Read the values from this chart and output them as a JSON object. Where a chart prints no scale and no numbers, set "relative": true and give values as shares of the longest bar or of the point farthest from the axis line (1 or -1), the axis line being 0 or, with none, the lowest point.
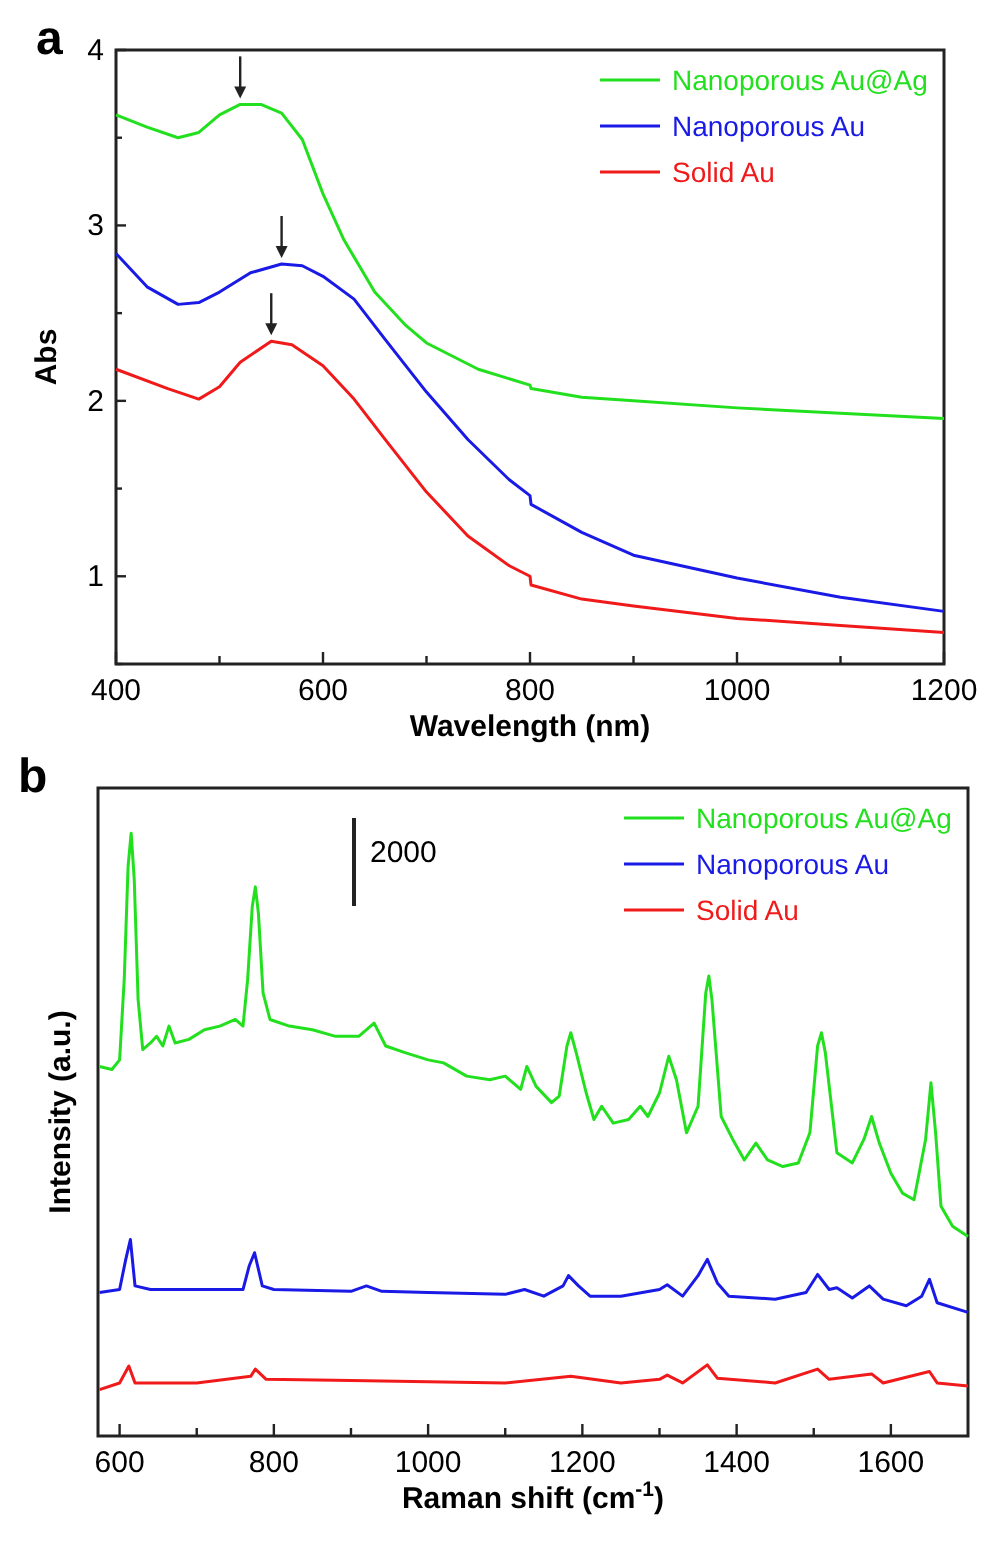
{
  "chart_data": [
    {
      "type": "line",
      "title": "a",
      "xlabel": "Wavelength (nm)",
      "ylabel": "Abs",
      "xlim": [
        400,
        1200
      ],
      "ylim": [
        0.5,
        4
      ],
      "xticks": [
        400,
        {
          "value": 500,
          "label": null
        },
        600,
        {
          "value": 700,
          "label": null
        },
        800,
        {
          "value": 900,
          "label": null
        },
        1000,
        {
          "value": 1100,
          "label": null
        },
        1200
      ],
      "yticks": [
        {
          "value": 0.5,
          "label": null
        },
        1,
        {
          "value": 1.5,
          "label": null
        },
        2,
        {
          "value": 2.5,
          "label": null
        },
        3,
        {
          "value": 3.5,
          "label": null
        },
        4
      ],
      "legend": "top right",
      "grid": false,
      "series": [
        {
          "name": "Nanoporous Au@Ag",
          "color": "#22e01e",
          "x": [
            400,
            430,
            460,
            480,
            500,
            520,
            540,
            560,
            580,
            600,
            620,
            650,
            680,
            700,
            750,
            800,
            801,
            850,
            900,
            1000,
            1100,
            1200
          ],
          "values": [
            3.63,
            3.56,
            3.5,
            3.53,
            3.63,
            3.69,
            3.69,
            3.64,
            3.49,
            3.18,
            2.92,
            2.62,
            2.43,
            2.33,
            2.18,
            2.09,
            2.07,
            2.02,
            2.0,
            1.96,
            1.93,
            1.9
          ]
        },
        {
          "name": "Nanoporous Au",
          "color": "#1a1ae6",
          "x": [
            400,
            430,
            460,
            480,
            500,
            530,
            560,
            580,
            600,
            630,
            660,
            700,
            740,
            780,
            800,
            801,
            850,
            900,
            1000,
            1100,
            1200
          ],
          "values": [
            2.84,
            2.65,
            2.55,
            2.56,
            2.62,
            2.73,
            2.78,
            2.77,
            2.71,
            2.58,
            2.35,
            2.05,
            1.78,
            1.55,
            1.46,
            1.41,
            1.25,
            1.12,
            0.99,
            0.88,
            0.8
          ]
        },
        {
          "name": "Solid Au",
          "color": "#f01a1a",
          "x": [
            400,
            450,
            480,
            500,
            520,
            550,
            570,
            600,
            630,
            660,
            700,
            740,
            780,
            800,
            801,
            850,
            900,
            1000,
            1100,
            1200
          ],
          "values": [
            2.18,
            2.07,
            2.01,
            2.08,
            2.22,
            2.34,
            2.32,
            2.2,
            2.01,
            1.78,
            1.48,
            1.23,
            1.06,
            1.0,
            0.95,
            0.87,
            0.83,
            0.76,
            0.72,
            0.68
          ]
        }
      ]
    },
    {
      "type": "line",
      "title": "b",
      "xlabel": "Raman shift (cm$^{-1}$)",
      "ylabel": "Intensity (a.u.)",
      "relative": true,
      "xlim": [
        572,
        1700
      ],
      "xticks": [
        600,
        {
          "value": 700,
          "label": null
        },
        800,
        {
          "value": 900,
          "label": null
        },
        1000,
        {
          "value": 1100,
          "label": null
        },
        1200,
        {
          "value": 1300,
          "label": null
        },
        1400,
        {
          "value": 1500,
          "label": null
        },
        1600
      ],
      "annotations": [
        "2000"
      ],
      "legend": "top right",
      "grid": false,
      "series": [
        {
          "name": "Nanoporous Au@Ag",
          "color": "#22e01e",
          "x": [
            574,
            590,
            600,
            606,
            611,
            615,
            619,
            624,
            630,
            640,
            648,
            656,
            664,
            672,
            690,
            710,
            730,
            750,
            760,
            766,
            772,
            776,
            780,
            786,
            795,
            820,
            850,
            880,
            910,
            930,
            945,
            970,
            1000,
            1020,
            1050,
            1080,
            1100,
            1120,
            1128,
            1140,
            1160,
            1170,
            1180,
            1185,
            1192,
            1205,
            1215,
            1225,
            1240,
            1260,
            1275,
            1285,
            1300,
            1312,
            1322,
            1335,
            1350,
            1360,
            1364,
            1368,
            1380,
            1395,
            1410,
            1425,
            1440,
            1460,
            1480,
            1495,
            1505,
            1510,
            1515,
            1530,
            1550,
            1565,
            1575,
            1585,
            1600,
            1615,
            1630,
            1645,
            1652,
            1658,
            1665,
            1680,
            1700
          ],
          "values": [
            0.613,
            0.608,
            0.624,
            0.757,
            0.945,
            1,
            0.923,
            0.724,
            0.641,
            0.652,
            0.663,
            0.647,
            0.68,
            0.652,
            0.658,
            0.674,
            0.68,
            0.691,
            0.68,
            0.757,
            0.878,
            0.911,
            0.867,
            0.735,
            0.691,
            0.68,
            0.674,
            0.663,
            0.663,
            0.685,
            0.647,
            0.636,
            0.624,
            0.619,
            0.597,
            0.591,
            0.597,
            0.575,
            0.613,
            0.58,
            0.553,
            0.564,
            0.647,
            0.669,
            0.636,
            0.569,
            0.525,
            0.547,
            0.519,
            0.525,
            0.547,
            0.53,
            0.569,
            0.63,
            0.591,
            0.503,
            0.547,
            0.735,
            0.763,
            0.724,
            0.53,
            0.492,
            0.458,
            0.486,
            0.458,
            0.447,
            0.453,
            0.503,
            0.647,
            0.669,
            0.636,
            0.47,
            0.453,
            0.492,
            0.53,
            0.486,
            0.436,
            0.403,
            0.392,
            0.492,
            0.586,
            0.503,
            0.381,
            0.348,
            0.331
          ]
        },
        {
          "name": "Nanoporous Au",
          "color": "#1a1ae6",
          "x": [
            574,
            600,
            608,
            614,
            620,
            640,
            700,
            760,
            768,
            775,
            785,
            800,
            900,
            920,
            940,
            1000,
            1100,
            1125,
            1150,
            1175,
            1182,
            1195,
            1210,
            1250,
            1300,
            1310,
            1330,
            1350,
            1362,
            1375,
            1390,
            1450,
            1490,
            1505,
            1520,
            1530,
            1550,
            1572,
            1590,
            1620,
            1640,
            1650,
            1660,
            1700
          ],
          "values": [
            0.238,
            0.243,
            0.293,
            0.326,
            0.249,
            0.243,
            0.243,
            0.243,
            0.282,
            0.304,
            0.249,
            0.243,
            0.24,
            0.249,
            0.24,
            0.238,
            0.235,
            0.243,
            0.232,
            0.249,
            0.266,
            0.249,
            0.232,
            0.232,
            0.243,
            0.251,
            0.232,
            0.266,
            0.293,
            0.254,
            0.232,
            0.227,
            0.238,
            0.268,
            0.243,
            0.246,
            0.229,
            0.249,
            0.227,
            0.216,
            0.232,
            0.26,
            0.221,
            0.205
          ]
        },
        {
          "name": "Solid Au",
          "color": "#f01a1a",
          "x": [
            574,
            600,
            612,
            620,
            700,
            770,
            776,
            790,
            900,
            1000,
            1100,
            1185,
            1250,
            1300,
            1310,
            1330,
            1362,
            1375,
            1450,
            1505,
            1520,
            1575,
            1590,
            1650,
            1660,
            1700
          ],
          "values": [
            0.077,
            0.088,
            0.116,
            0.088,
            0.088,
            0.099,
            0.111,
            0.094,
            0.092,
            0.09,
            0.088,
            0.099,
            0.088,
            0.094,
            0.101,
            0.088,
            0.118,
            0.096,
            0.088,
            0.111,
            0.094,
            0.103,
            0.088,
            0.107,
            0.088,
            0.083
          ]
        }
      ]
    }
  ]
}
